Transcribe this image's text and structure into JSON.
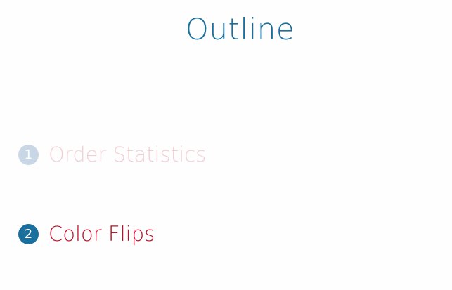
{
  "slide": {
    "title": "Outline",
    "items": [
      {
        "number": "1",
        "label": "Order Statistics",
        "state": "inactive"
      },
      {
        "number": "2",
        "label": "Color Flips",
        "state": "active"
      }
    ]
  },
  "colors": {
    "title": "#1a6f9c",
    "active_bullet": "#1a6f9c",
    "active_text": "#c0102b",
    "inactive_bullet": "#c9d6e6",
    "inactive_text": "#f2cfd4",
    "background": "#fefefe"
  }
}
